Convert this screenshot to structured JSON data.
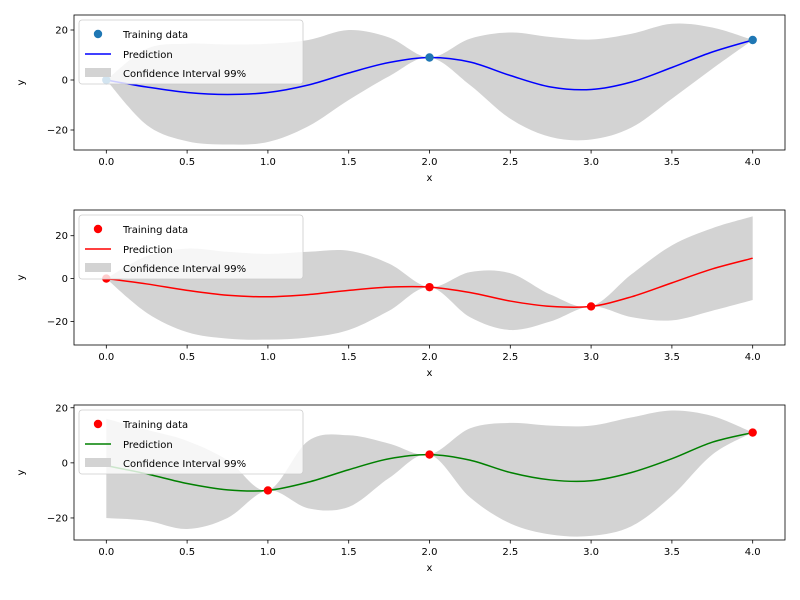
{
  "chart_data": [
    {
      "type": "line",
      "xlabel": "x",
      "ylabel": "y",
      "xlim": [
        -0.2,
        4.2
      ],
      "ylim": [
        -28,
        26
      ],
      "xticks": [
        0.0,
        0.5,
        1.0,
        1.5,
        2.0,
        2.5,
        3.0,
        3.5,
        4.0
      ],
      "xtick_labels": [
        "0.0",
        "0.5",
        "1.0",
        "1.5",
        "2.0",
        "2.5",
        "3.0",
        "3.5",
        "4.0"
      ],
      "yticks": [
        -20,
        0,
        20
      ],
      "ytick_labels": [
        "−20",
        "0",
        "20"
      ],
      "grid": false,
      "legend_position": "top-left",
      "series": [
        {
          "name": "Training data",
          "kind": "points",
          "color": "#1f77b4",
          "x": [
            0.0,
            2.0,
            4.0
          ],
          "y": [
            0.0,
            9.0,
            16.0
          ]
        },
        {
          "name": "Prediction",
          "kind": "line",
          "color": "#0000ff",
          "x": [
            0.0,
            0.25,
            0.5,
            0.75,
            1.0,
            1.25,
            1.5,
            1.75,
            2.0,
            2.25,
            2.5,
            2.75,
            3.0,
            3.25,
            3.5,
            3.75,
            4.0
          ],
          "y": [
            0.0,
            -2.8,
            -5.0,
            -5.8,
            -5.0,
            -2.0,
            2.8,
            7.0,
            9.0,
            7.2,
            1.8,
            -2.8,
            -3.8,
            -0.8,
            5.0,
            11.2,
            16.0
          ]
        },
        {
          "name": "Confidence Interval 99%",
          "kind": "band",
          "color": "#d3d3d3",
          "x": [
            0.0,
            0.25,
            0.5,
            0.75,
            1.0,
            1.25,
            1.5,
            1.75,
            2.0,
            2.25,
            2.5,
            2.75,
            3.0,
            3.25,
            3.5,
            3.75,
            4.0
          ],
          "lower": [
            0.0,
            -18.0,
            -24.5,
            -25.8,
            -24.8,
            -18.5,
            -8.0,
            1.5,
            9.0,
            -2.0,
            -15.5,
            -22.8,
            -23.8,
            -19.0,
            -7.5,
            4.5,
            16.0
          ],
          "upper": [
            0.0,
            12.5,
            14.5,
            14.2,
            14.5,
            16.0,
            20.0,
            17.0,
            9.0,
            16.5,
            19.0,
            17.2,
            16.2,
            18.5,
            22.5,
            21.0,
            16.0
          ]
        }
      ]
    },
    {
      "type": "line",
      "xlabel": "x",
      "ylabel": "y",
      "xlim": [
        -0.2,
        4.2
      ],
      "ylim": [
        -31,
        32
      ],
      "xticks": [
        0.0,
        0.5,
        1.0,
        1.5,
        2.0,
        2.5,
        3.0,
        3.5,
        4.0
      ],
      "xtick_labels": [
        "0.0",
        "0.5",
        "1.0",
        "1.5",
        "2.0",
        "2.5",
        "3.0",
        "3.5",
        "4.0"
      ],
      "yticks": [
        -20,
        0,
        20
      ],
      "ytick_labels": [
        "−20",
        "0",
        "20"
      ],
      "grid": false,
      "legend_position": "top-left",
      "series": [
        {
          "name": "Training data",
          "kind": "points",
          "color": "#ff0000",
          "x": [
            0.0,
            2.0,
            3.0
          ],
          "y": [
            0.0,
            -4.0,
            -13.0
          ]
        },
        {
          "name": "Prediction",
          "kind": "line",
          "color": "#ff0000",
          "x": [
            0.0,
            0.25,
            0.5,
            0.75,
            1.0,
            1.25,
            1.5,
            1.75,
            2.0,
            2.25,
            2.5,
            2.75,
            3.0,
            3.25,
            3.5,
            3.75,
            4.0
          ],
          "y": [
            0.0,
            -2.5,
            -5.5,
            -7.8,
            -8.5,
            -7.5,
            -5.5,
            -4.0,
            -4.0,
            -6.5,
            -10.5,
            -13.0,
            -13.0,
            -8.5,
            -2.0,
            4.5,
            9.5
          ]
        },
        {
          "name": "Confidence Interval 99%",
          "kind": "band",
          "color": "#d3d3d3",
          "x": [
            0.0,
            0.25,
            0.5,
            0.75,
            1.0,
            1.25,
            1.5,
            1.75,
            2.0,
            2.25,
            2.5,
            2.75,
            3.0,
            3.25,
            3.5,
            3.75,
            4.0
          ],
          "lower": [
            0.0,
            -16.0,
            -25.0,
            -28.0,
            -28.5,
            -27.5,
            -24.0,
            -15.0,
            -4.0,
            -18.0,
            -24.0,
            -20.0,
            -13.0,
            -18.0,
            -19.5,
            -15.0,
            -10.0
          ],
          "upper": [
            0.0,
            10.5,
            14.0,
            12.5,
            11.5,
            12.5,
            13.0,
            7.0,
            -4.0,
            3.0,
            2.5,
            -7.5,
            -13.0,
            2.0,
            15.5,
            23.5,
            29.0
          ]
        }
      ]
    },
    {
      "type": "line",
      "xlabel": "x",
      "ylabel": "y",
      "xlim": [
        -0.2,
        4.2
      ],
      "ylim": [
        -28,
        21
      ],
      "xticks": [
        0.0,
        0.5,
        1.0,
        1.5,
        2.0,
        2.5,
        3.0,
        3.5,
        4.0
      ],
      "xtick_labels": [
        "0.0",
        "0.5",
        "1.0",
        "1.5",
        "2.0",
        "2.5",
        "3.0",
        "3.5",
        "4.0"
      ],
      "yticks": [
        -20,
        0,
        20
      ],
      "ytick_labels": [
        "−20",
        "0",
        "20"
      ],
      "grid": false,
      "legend_position": "top-left",
      "series": [
        {
          "name": "Training data",
          "kind": "points",
          "color": "#ff0000",
          "x": [
            1.0,
            2.0,
            4.0
          ],
          "y": [
            -10.0,
            3.0,
            11.0
          ]
        },
        {
          "name": "Prediction",
          "kind": "line",
          "color": "#008000",
          "x": [
            0.0,
            0.25,
            0.5,
            0.75,
            1.0,
            1.25,
            1.5,
            1.75,
            2.0,
            2.25,
            2.5,
            2.75,
            3.0,
            3.25,
            3.5,
            3.75,
            4.0
          ],
          "y": [
            -1.0,
            -4.0,
            -7.5,
            -9.8,
            -10.0,
            -7.0,
            -2.5,
            1.5,
            3.0,
            1.0,
            -3.5,
            -6.2,
            -6.5,
            -3.5,
            1.5,
            7.5,
            11.0
          ]
        },
        {
          "name": "Confidence Interval 99%",
          "kind": "band",
          "color": "#d3d3d3",
          "x": [
            0.0,
            0.25,
            0.5,
            0.75,
            1.0,
            1.25,
            1.5,
            1.75,
            2.0,
            2.25,
            2.5,
            2.75,
            3.0,
            3.25,
            3.5,
            3.75,
            4.0
          ],
          "lower": [
            -20.0,
            -21.0,
            -24.0,
            -20.0,
            -10.0,
            -16.5,
            -16.0,
            -5.5,
            3.0,
            -12.5,
            -22.0,
            -26.0,
            -26.5,
            -23.0,
            -12.0,
            3.0,
            11.0
          ],
          "upper": [
            16.0,
            12.0,
            8.0,
            1.0,
            -10.0,
            8.0,
            10.0,
            7.0,
            3.0,
            12.5,
            14.5,
            13.5,
            13.5,
            16.5,
            19.0,
            17.0,
            11.0
          ]
        }
      ]
    }
  ]
}
